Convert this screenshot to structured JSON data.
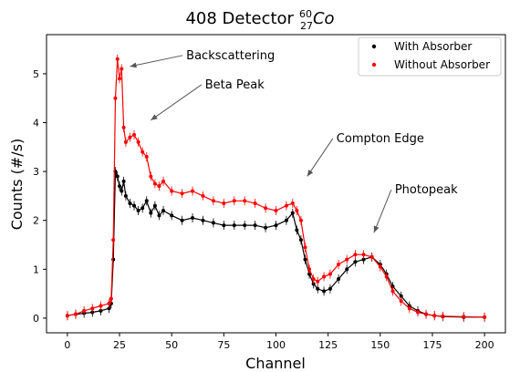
{
  "chart_data": {
    "type": "scatter",
    "title": "408 Detector",
    "title_isotope": {
      "mass": "60",
      "atomic": "27",
      "symbol": "Co"
    },
    "xlabel": "Channel",
    "ylabel": "Counts (#/s)",
    "xlim": [
      -10,
      210
    ],
    "ylim": [
      -0.3,
      5.8
    ],
    "xticks": [
      0,
      25,
      50,
      75,
      100,
      125,
      150,
      175,
      200
    ],
    "yticks": [
      0,
      1,
      2,
      3,
      4,
      5
    ],
    "grid": false,
    "legend": "top-right",
    "x": [
      0,
      4,
      8,
      12,
      16,
      20,
      21,
      22,
      23,
      24,
      25,
      26,
      27,
      28,
      30,
      32,
      34,
      36,
      38,
      40,
      42,
      44,
      46,
      50,
      55,
      60,
      65,
      70,
      75,
      80,
      85,
      90,
      95,
      100,
      105,
      108,
      110,
      112,
      114,
      116,
      118,
      120,
      123,
      126,
      130,
      134,
      138,
      142,
      146,
      150,
      153,
      156,
      160,
      164,
      168,
      172,
      176,
      180,
      190,
      200
    ],
    "series": [
      {
        "name": "With Absorber",
        "color": "#000000",
        "values": [
          0.05,
          0.08,
          0.1,
          0.12,
          0.15,
          0.2,
          0.3,
          1.2,
          3.0,
          2.9,
          2.7,
          2.6,
          2.8,
          2.5,
          2.35,
          2.3,
          2.2,
          2.25,
          2.4,
          2.15,
          2.3,
          2.1,
          2.2,
          2.1,
          2.0,
          2.05,
          2.0,
          1.95,
          1.9,
          1.9,
          1.9,
          1.9,
          1.85,
          1.9,
          2.0,
          2.15,
          1.8,
          1.6,
          1.2,
          0.9,
          0.7,
          0.6,
          0.55,
          0.6,
          0.8,
          1.0,
          1.15,
          1.2,
          1.25,
          1.1,
          0.9,
          0.65,
          0.45,
          0.25,
          0.15,
          0.08,
          0.05,
          0.03,
          0.02,
          0.02
        ]
      },
      {
        "name": "Without Absorber",
        "color": "#ff0000",
        "values": [
          0.05,
          0.08,
          0.15,
          0.2,
          0.25,
          0.3,
          0.4,
          1.6,
          4.5,
          5.3,
          4.9,
          5.1,
          3.9,
          3.6,
          3.7,
          3.75,
          3.6,
          3.4,
          3.3,
          2.9,
          2.75,
          2.7,
          2.8,
          2.6,
          2.55,
          2.6,
          2.5,
          2.4,
          2.35,
          2.4,
          2.4,
          2.35,
          2.25,
          2.2,
          2.3,
          2.35,
          2.2,
          2.0,
          1.45,
          1.0,
          0.8,
          0.75,
          0.85,
          0.9,
          1.1,
          1.2,
          1.3,
          1.3,
          1.25,
          1.05,
          0.85,
          0.55,
          0.35,
          0.2,
          0.12,
          0.08,
          0.05,
          0.04,
          0.03,
          0.02
        ]
      }
    ],
    "annotations": [
      {
        "text": "Backscattering",
        "point": [
          30,
          5.15
        ],
        "text_at": [
          57,
          5.3
        ]
      },
      {
        "text": "Beta Peak",
        "point": [
          40,
          4.05
        ],
        "text_at": [
          66,
          4.7
        ]
      },
      {
        "text": "Compton Edge",
        "point": [
          115,
          2.9
        ],
        "text_at": [
          129,
          3.6
        ]
      },
      {
        "text": "Photopeak",
        "point": [
          147,
          1.75
        ],
        "text_at": [
          157,
          2.55
        ]
      }
    ]
  }
}
